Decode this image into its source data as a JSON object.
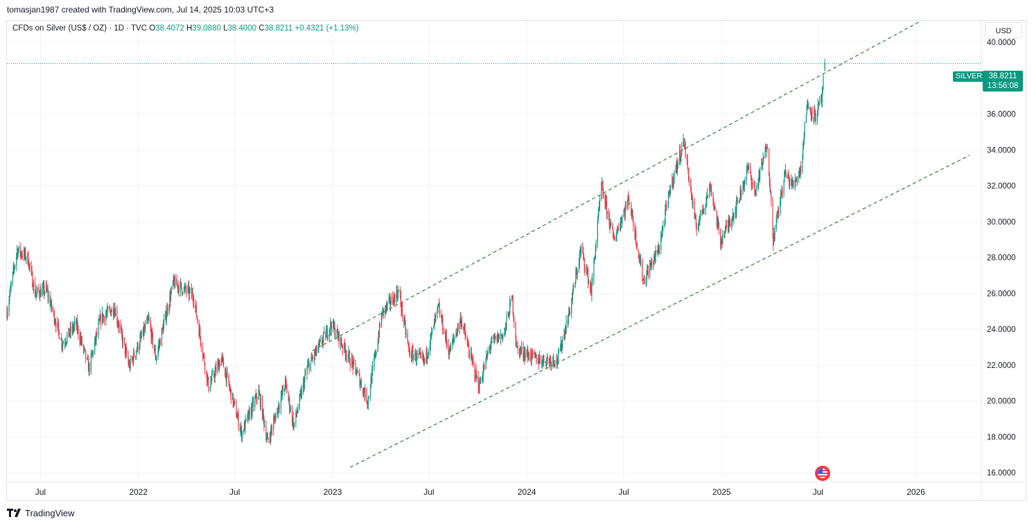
{
  "header": {
    "attribution": "tomasjan1987 created with TradingView.com, Jul 14, 2025 10:03 UTC+3"
  },
  "legend": {
    "symbol": "CFDs on Silver (US$ / OZ) · 1D · TVC",
    "open_label": "O",
    "open": "38.4072",
    "high_label": "H",
    "high": "39.0880",
    "low_label": "L",
    "low": "38.4000",
    "close_label": "C",
    "close": "38.8211",
    "change": "+0.4321 (+1.13%)"
  },
  "currency_button": "USD",
  "last_price": {
    "symbol": "SILVER",
    "price": "38.8211",
    "countdown": "13:56:08"
  },
  "footer": {
    "brand": "TradingView"
  },
  "colors": {
    "up": "#089981",
    "down": "#f23645",
    "trendline": "#2e7d32",
    "grid": "#f0f3fa"
  },
  "chart_data": {
    "type": "candlestick",
    "interval": "1D",
    "ylim": [
      15.5,
      41.2
    ],
    "y_ticks": [
      "16.0000",
      "18.0000",
      "20.0000",
      "22.0000",
      "24.0000",
      "26.0000",
      "28.0000",
      "30.0000",
      "32.0000",
      "34.0000",
      "36.0000",
      "40.0000"
    ],
    "x_ticks": [
      "Jul",
      "2022",
      "Jul",
      "2023",
      "Jul",
      "2024",
      "Jul",
      "2025",
      "Jul",
      "2026"
    ],
    "x_range": [
      "2021-04-29",
      "2026-05-04"
    ],
    "price_path": [
      [
        "2021-04-29",
        25.0
      ],
      [
        "2021-05-18",
        28.4
      ],
      [
        "2021-06-07",
        28.0
      ],
      [
        "2021-06-21",
        26.0
      ],
      [
        "2021-07-12",
        26.2
      ],
      [
        "2021-08-11",
        23.2
      ],
      [
        "2021-09-06",
        24.3
      ],
      [
        "2021-09-30",
        21.8
      ],
      [
        "2021-10-22",
        24.6
      ],
      [
        "2021-11-17",
        25.2
      ],
      [
        "2021-12-15",
        21.9
      ],
      [
        "2022-01-20",
        24.5
      ],
      [
        "2022-02-03",
        22.4
      ],
      [
        "2022-03-08",
        26.6
      ],
      [
        "2022-04-14",
        25.9
      ],
      [
        "2022-05-13",
        20.8
      ],
      [
        "2022-06-06",
        22.4
      ],
      [
        "2022-07-14",
        18.2
      ],
      [
        "2022-08-15",
        20.5
      ],
      [
        "2022-09-01",
        17.7
      ],
      [
        "2022-10-04",
        21.0
      ],
      [
        "2022-10-20",
        18.6
      ],
      [
        "2022-11-14",
        21.8
      ],
      [
        "2022-12-30",
        24.3
      ],
      [
        "2023-02-15",
        21.6
      ],
      [
        "2023-03-08",
        20.0
      ],
      [
        "2023-04-04",
        24.9
      ],
      [
        "2023-05-05",
        26.1
      ],
      [
        "2023-05-25",
        22.7
      ],
      [
        "2023-06-23",
        22.2
      ],
      [
        "2023-07-19",
        25.2
      ],
      [
        "2023-08-08",
        22.7
      ],
      [
        "2023-08-30",
        24.6
      ],
      [
        "2023-09-14",
        22.8
      ],
      [
        "2023-10-03",
        20.8
      ],
      [
        "2023-10-25",
        23.2
      ],
      [
        "2023-11-20",
        23.8
      ],
      [
        "2023-12-04",
        25.8
      ],
      [
        "2023-12-13",
        22.9
      ],
      [
        "2024-01-22",
        22.3
      ],
      [
        "2024-02-28",
        22.3
      ],
      [
        "2024-03-21",
        25.0
      ],
      [
        "2024-04-12",
        28.5
      ],
      [
        "2024-05-01",
        26.1
      ],
      [
        "2024-05-20",
        32.0
      ],
      [
        "2024-06-12",
        29.0
      ],
      [
        "2024-07-11",
        31.3
      ],
      [
        "2024-08-07",
        26.7
      ],
      [
        "2024-09-05",
        28.5
      ],
      [
        "2024-09-26",
        31.8
      ],
      [
        "2024-10-22",
        34.5
      ],
      [
        "2024-11-14",
        29.6
      ],
      [
        "2024-12-11",
        32.0
      ],
      [
        "2024-12-30",
        28.9
      ],
      [
        "2025-01-28",
        30.8
      ],
      [
        "2025-02-20",
        33.0
      ],
      [
        "2025-03-05",
        31.6
      ],
      [
        "2025-03-28",
        34.4
      ],
      [
        "2025-04-08",
        29.0
      ],
      [
        "2025-04-30",
        32.7
      ],
      [
        "2025-05-15",
        32.0
      ],
      [
        "2025-05-30",
        33.0
      ],
      [
        "2025-06-10",
        36.5
      ],
      [
        "2025-06-26",
        35.9
      ],
      [
        "2025-07-08",
        36.8
      ],
      [
        "2025-07-14",
        38.82
      ]
    ],
    "trendlines": [
      {
        "style": "dashed",
        "from": [
          "2022-11-24",
          22.8
        ],
        "to": [
          "2026-01-11",
          41.2
        ]
      },
      {
        "style": "dashed",
        "from": [
          "2023-02-03",
          16.3
        ],
        "to": [
          "2026-04-12",
          33.7
        ]
      }
    ],
    "last_close": 38.8211,
    "last_close_guide": "dotted"
  }
}
